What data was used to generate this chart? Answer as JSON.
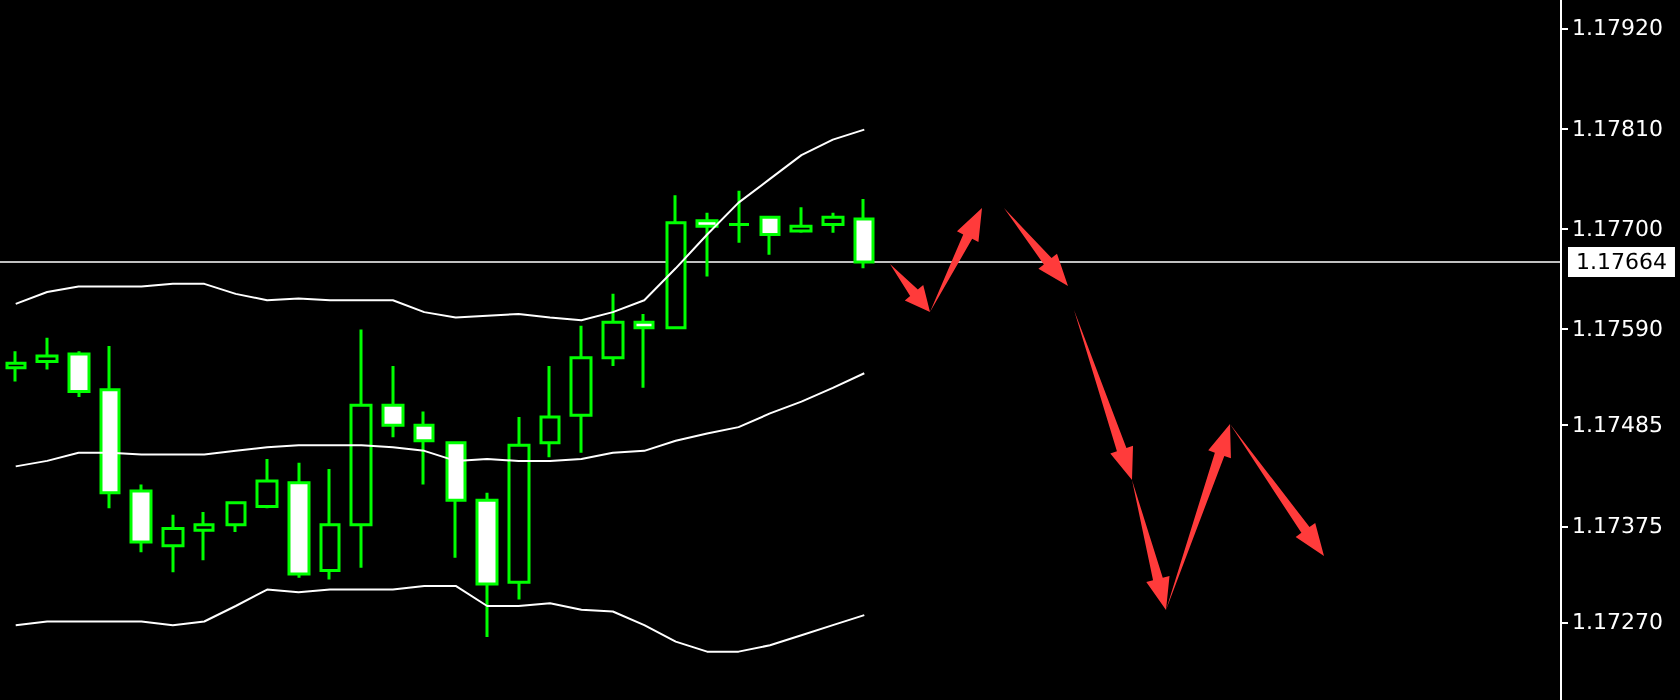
{
  "chart_data": {
    "type": "candlestick",
    "categories": [
      null,
      null,
      null,
      null,
      null,
      null,
      null,
      null,
      null,
      null,
      null,
      null,
      null,
      null,
      null,
      null,
      null,
      null,
      null,
      null,
      null,
      null,
      null,
      null,
      null,
      null,
      null,
      null
    ],
    "color": "#00ff00",
    "ohlc": [
      [
        1.17548,
        1.17566,
        1.17533,
        1.17553
      ],
      [
        1.17555,
        1.17581,
        1.17546,
        1.17561
      ],
      [
        1.17563,
        1.17566,
        1.17516,
        1.17522
      ],
      [
        1.17524,
        1.17572,
        1.17394,
        1.17411
      ],
      [
        1.17413,
        1.1742,
        1.17346,
        1.17357
      ],
      [
        1.17353,
        1.17387,
        1.17324,
        1.17372
      ],
      [
        1.1737,
        1.1739,
        1.17337,
        1.17376
      ],
      [
        1.17376,
        1.174,
        1.17368,
        1.174
      ],
      [
        1.17396,
        1.17448,
        1.17394,
        1.17424
      ],
      [
        1.17422,
        1.17444,
        1.17318,
        1.17322
      ],
      [
        1.17326,
        1.17437,
        1.17316,
        1.17376
      ],
      [
        1.17376,
        1.1759,
        1.17329,
        1.17507
      ],
      [
        1.17507,
        1.1755,
        1.17472,
        1.17485
      ],
      [
        1.17485,
        1.175,
        1.1742,
        1.17468
      ],
      [
        1.17466,
        1.17466,
        1.1734,
        1.17403
      ],
      [
        1.17403,
        1.17411,
        1.17253,
        1.17311
      ],
      [
        1.17313,
        1.17494,
        1.17294,
        1.17463
      ],
      [
        1.17466,
        1.1755,
        1.1745,
        1.17494
      ],
      [
        1.17496,
        1.17594,
        1.17455,
        1.17559
      ],
      [
        1.17559,
        1.17629,
        1.1755,
        1.17598
      ],
      [
        1.17598,
        1.17607,
        1.17526,
        1.17592
      ],
      [
        1.17592,
        1.17737,
        1.17592,
        1.17707
      ],
      [
        1.17709,
        1.17718,
        1.17648,
        1.17703
      ],
      [
        1.17705,
        1.17742,
        1.17685,
        1.17705
      ],
      [
        1.17713,
        1.17713,
        1.17672,
        1.17694
      ],
      [
        1.17698,
        1.17724,
        1.17696,
        1.17703
      ],
      [
        1.17705,
        1.17718,
        1.17696,
        1.17713
      ],
      [
        1.17711,
        1.17733,
        1.17657,
        1.17664
      ]
    ],
    "series": [
      {
        "type": "line",
        "color": "#ffffff",
        "values": [
          1.17618,
          1.17631,
          1.17637,
          1.17637,
          1.17637,
          1.1764,
          1.1764,
          1.17629,
          1.17622,
          1.17624,
          1.17622,
          1.17622,
          1.17622,
          1.17609,
          1.17603,
          1.17605,
          1.17607,
          1.17603,
          1.176,
          1.17609,
          1.17622,
          1.17657,
          1.17694,
          1.17729,
          1.17755,
          1.17781,
          1.17798,
          1.17809
        ]
      },
      {
        "type": "line",
        "color": "#ffffff",
        "values": [
          1.1744,
          1.17446,
          1.17455,
          1.17455,
          1.17453,
          1.17453,
          1.17453,
          1.17457,
          1.17461,
          1.17463,
          1.17463,
          1.17463,
          1.17461,
          1.17457,
          1.17446,
          1.17448,
          1.17446,
          1.17446,
          1.17448,
          1.17455,
          1.17457,
          1.17468,
          1.17476,
          1.17483,
          1.17498,
          1.17511,
          1.17526,
          1.17542
        ]
      },
      {
        "type": "line",
        "color": "#ffffff",
        "values": [
          1.17266,
          1.1727,
          1.1727,
          1.1727,
          1.1727,
          1.17266,
          1.1727,
          1.17287,
          1.17305,
          1.17302,
          1.17305,
          1.17305,
          1.17305,
          1.17309,
          1.17309,
          1.17287,
          1.17287,
          1.1729,
          1.17283,
          1.17281,
          1.17266,
          1.17248,
          1.17237,
          1.17237,
          1.17244,
          1.17255,
          1.17266,
          1.17277
        ]
      }
    ],
    "ylim": [
      1.17184,
      1.17951
    ],
    "yticks": [
      {
        "value": 1.1727,
        "label": "1.17270"
      },
      {
        "value": 1.17375,
        "label": "1.17375"
      },
      {
        "value": 1.17485,
        "label": "1.17485"
      },
      {
        "value": 1.1759,
        "label": "1.17590"
      },
      {
        "value": 1.177,
        "label": "1.17700"
      },
      {
        "value": 1.1781,
        "label": "1.17810"
      },
      {
        "value": 1.1792,
        "label": "1.17920"
      }
    ],
    "ref_lines": [
      {
        "axis": "y",
        "value": 1.17664,
        "label": "1.17664",
        "color": "#c0c0c0"
      }
    ],
    "grid": false,
    "tick_labels": "y",
    "marker": "none"
  }
}
